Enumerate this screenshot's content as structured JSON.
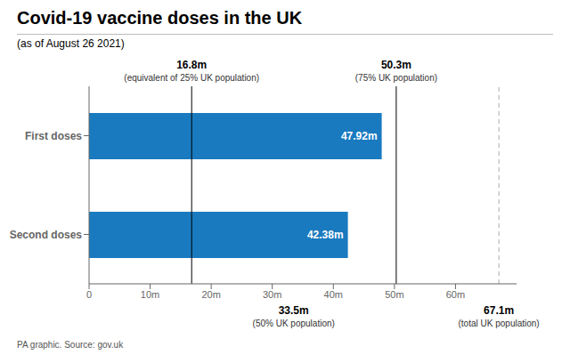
{
  "chart_data": {
    "type": "bar",
    "orientation": "horizontal",
    "title": "Covid-19 vaccine doses in the UK",
    "subtitle": "(as of August 26 2021)",
    "footnote": "PA graphic. Source: gov.uk",
    "categories": [
      "First doses",
      "Second doses"
    ],
    "values": [
      47.92,
      42.38
    ],
    "value_labels": [
      "47.92m",
      "42.38m"
    ],
    "data_labels": true,
    "color": "#1a7abf",
    "xlim": [
      0,
      70
    ],
    "xticks": [
      0,
      {
        "value": 10,
        "label": "10m"
      },
      {
        "value": 20,
        "label": "20m"
      },
      {
        "value": 30,
        "label": "30m"
      },
      {
        "value": 40,
        "label": "40m"
      },
      {
        "value": 50,
        "label": "50m"
      },
      {
        "value": 60,
        "label": "60m"
      }
    ],
    "grid": false,
    "annotations": [
      {
        "x": 16.8,
        "text": "16.8m",
        "note": "(equivalent of 25% UK population)",
        "line_style": "solid",
        "color": "#000000"
      },
      {
        "x": 33.5,
        "text": "33.5m",
        "note": "(50% UK population)"
      },
      {
        "x": 50.3,
        "text": "50.3m",
        "note": "(75% UK population)",
        "line_style": "solid",
        "color": "#000000"
      },
      {
        "x": 67.1,
        "text": "67.1m",
        "note": "(total UK population)",
        "line_style": "dashed",
        "color": "#aaaaaa"
      }
    ]
  }
}
